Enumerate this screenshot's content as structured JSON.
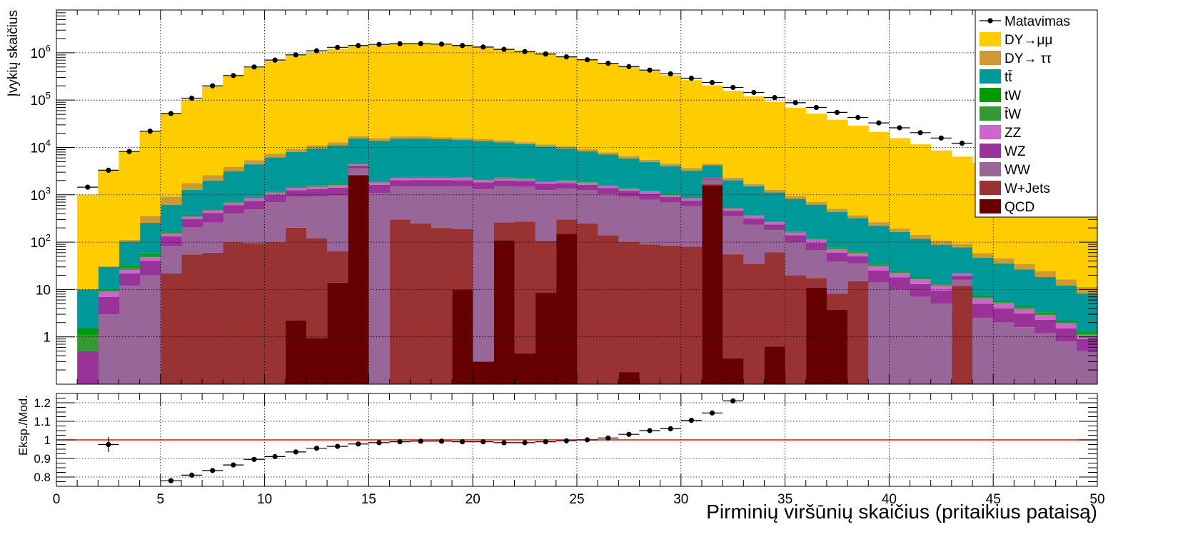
{
  "chart_data": [
    {
      "type": "stacked-histogram",
      "ylabel": "Įvykių skaičius",
      "xlim": [
        0,
        50
      ],
      "ylim": [
        0.1,
        8000000
      ],
      "yscale": "log",
      "grid": true,
      "legend_position": "top-right",
      "ytick_labels": [
        {
          "v": 1,
          "label": "1"
        },
        {
          "v": 10,
          "label": "10"
        },
        {
          "v": 100,
          "label": "10",
          "exp": "2"
        },
        {
          "v": 1000,
          "label": "10",
          "exp": "3"
        },
        {
          "v": 10000,
          "label": "10",
          "exp": "4"
        },
        {
          "v": 100000,
          "label": "10",
          "exp": "5"
        },
        {
          "v": 1000000,
          "label": "10",
          "exp": "6"
        }
      ],
      "bin_start": 1,
      "bin_width": 1,
      "series": [
        {
          "name": "QCD",
          "color": "#660000",
          "values": [
            0,
            0,
            0,
            0,
            0,
            0,
            0,
            0,
            0,
            0,
            2.2,
            0.95,
            14,
            2600,
            0,
            0,
            0,
            0,
            10,
            0.3,
            110,
            0.45,
            8.5,
            150,
            0,
            0,
            0.18,
            0,
            0,
            0,
            1600,
            0.35,
            0,
            0.62,
            0,
            11,
            3.7,
            0,
            0,
            0,
            0,
            0,
            0,
            0,
            0,
            0,
            0,
            0,
            0
          ]
        },
        {
          "name": "W+Jets",
          "color": "#993333",
          "values": [
            0,
            0,
            0,
            0,
            22,
            55,
            60,
            100,
            95,
            100,
            200,
            120,
            50,
            45,
            0,
            300,
            250,
            200,
            180,
            0,
            150,
            270,
            100,
            150,
            250,
            140,
            100,
            90,
            85,
            80,
            65,
            55,
            35,
            60,
            20,
            6.5,
            4.5,
            15,
            0,
            0,
            0,
            0,
            12,
            0,
            0,
            0,
            0,
            0,
            0
          ]
        },
        {
          "name": "WW",
          "color": "#996699",
          "values": [
            0,
            3,
            12,
            20,
            60,
            150,
            200,
            300,
            400,
            600,
            700,
            800,
            900,
            1000,
            1100,
            1200,
            1250,
            1300,
            1300,
            1300,
            1250,
            1200,
            1150,
            1050,
            1000,
            900,
            800,
            700,
            600,
            500,
            400,
            300,
            200,
            120,
            80,
            50,
            30,
            20,
            14,
            10,
            7,
            5,
            4,
            2.5,
            2,
            1.6,
            1.2,
            0.8,
            0.5
          ]
        },
        {
          "name": "WZ",
          "color": "#993399",
          "values": [
            0.5,
            4,
            10,
            20,
            50,
            100,
            150,
            200,
            250,
            300,
            350,
            400,
            450,
            500,
            520,
            540,
            550,
            550,
            540,
            520,
            500,
            480,
            450,
            420,
            380,
            340,
            300,
            260,
            220,
            180,
            140,
            110,
            80,
            55,
            40,
            30,
            22,
            15,
            11,
            8,
            6,
            4.5,
            3.5,
            2.5,
            2,
            1.5,
            1.1,
            0.7,
            0.4
          ]
        },
        {
          "name": "ZZ",
          "color": "#cc66cc",
          "values": [
            0,
            2,
            4,
            8,
            20,
            40,
            60,
            80,
            100,
            120,
            140,
            160,
            180,
            200,
            210,
            220,
            225,
            225,
            220,
            210,
            200,
            190,
            180,
            165,
            150,
            135,
            120,
            105,
            90,
            75,
            60,
            48,
            38,
            28,
            20,
            15,
            11,
            8,
            6,
            4.5,
            3.5,
            2.6,
            2,
            1.5,
            1.1,
            0.8,
            0.6,
            0.4,
            0.2
          ]
        },
        {
          "name": "t̄W",
          "color": "#339933",
          "values": [
            0.6,
            0.5,
            3,
            4,
            8,
            12,
            18,
            25,
            30,
            35,
            40,
            45,
            50,
            55,
            55,
            55,
            55,
            55,
            50,
            50,
            45,
            40,
            35,
            35,
            30,
            25,
            22,
            18,
            15,
            12,
            10,
            8,
            6,
            5,
            4,
            3,
            2.5,
            2,
            1.5,
            1.2,
            0.9,
            0.7,
            0.5,
            0.4,
            0.3,
            0.25,
            0.2,
            0.15,
            0.1
          ]
        },
        {
          "name": "tW",
          "color": "#009900",
          "values": [
            0.4,
            0.5,
            3,
            4,
            8,
            12,
            18,
            25,
            30,
            35,
            40,
            45,
            50,
            55,
            55,
            55,
            55,
            55,
            50,
            50,
            45,
            40,
            35,
            35,
            30,
            25,
            22,
            18,
            15,
            12,
            10,
            8,
            6,
            5,
            4,
            3,
            2.5,
            2,
            1.5,
            1.2,
            0.9,
            0.7,
            0.5,
            0.4,
            0.3,
            0.25,
            0.2,
            0.15,
            0.1
          ]
        },
        {
          "name": "tt̄",
          "color": "#009999",
          "values": [
            8.5,
            20,
            70,
            200,
            450,
            900,
            1500,
            2400,
            3500,
            5000,
            6500,
            8000,
            9500,
            11000,
            12000,
            13000,
            13000,
            12500,
            12000,
            11500,
            10500,
            9500,
            8500,
            7500,
            6500,
            5500,
            4500,
            3700,
            3000,
            2400,
            1900,
            1500,
            1150,
            850,
            650,
            500,
            360,
            260,
            190,
            140,
            100,
            75,
            55,
            40,
            30,
            22,
            15,
            10,
            7
          ]
        },
        {
          "name": "DY→ ττ",
          "color": "#cc9933",
          "values": [
            0,
            1,
            10,
            100,
            300,
            500,
            600,
            800,
            1000,
            1200,
            1400,
            1500,
            1600,
            1700,
            1700,
            1700,
            1700,
            1600,
            1500,
            1400,
            1300,
            1200,
            1100,
            1000,
            900,
            800,
            700,
            600,
            500,
            400,
            300,
            250,
            200,
            150,
            120,
            90,
            70,
            50,
            40,
            30,
            25,
            20,
            15,
            12,
            10,
            8,
            6,
            4,
            3
          ]
        },
        {
          "name": "DY→μμ",
          "color": "#ffcc00",
          "values": [
            1000,
            3200,
            8000,
            21000,
            50000,
            100000,
            190000,
            320000,
            480000,
            660000,
            850000,
            1000000,
            1200000,
            1350000,
            1430000,
            1500000,
            1520000,
            1500000,
            1420000,
            1320000,
            1200000,
            1080000,
            950000,
            830000,
            710000,
            600000,
            500000,
            410000,
            330000,
            260000,
            200000,
            155000,
            118000,
            90000,
            68000,
            51000,
            38000,
            28500,
            21000,
            15500,
            11500,
            8500,
            6300,
            4700,
            3500,
            2600,
            1900,
            1400,
            950
          ]
        }
      ],
      "data": {
        "name": "Matavimas",
        "x": [
          1.5,
          2.5,
          3.5,
          4.5,
          5.5,
          6.5,
          7.5,
          8.5,
          9.5,
          10.5,
          11.5,
          12.5,
          13.5,
          14.5,
          15.5,
          16.5,
          17.5,
          18.5,
          19.5,
          20.5,
          21.5,
          22.5,
          23.5,
          24.5,
          25.5,
          26.5,
          27.5,
          28.5,
          29.5,
          30.5,
          31.5,
          32.5,
          33.5,
          34.5,
          35.5,
          36.5,
          37.5,
          38.5,
          39.5,
          40.5,
          41.5,
          42.5,
          43.5
        ],
        "y": [
          1450,
          3300,
          8200,
          22000,
          52000,
          110000,
          200000,
          330000,
          500000,
          700000,
          900000,
          1100000,
          1300000,
          1420000,
          1500000,
          1550000,
          1560000,
          1520000,
          1420000,
          1320000,
          1180000,
          1060000,
          940000,
          820000,
          710000,
          600000,
          510000,
          430000,
          360000,
          290000,
          235000,
          185000,
          145000,
          113000,
          88000,
          70000,
          55000,
          43000,
          33000,
          26000,
          20500,
          15800,
          12300
        ]
      }
    },
    {
      "type": "scatter",
      "xlabel": "Pirminių viršūnių skaičius (pritaikius pataisą)",
      "ylabel": "Eksp./Mod.",
      "xlim": [
        0,
        50
      ],
      "ylim": [
        0.75,
        1.25
      ],
      "grid": true,
      "xticks": [
        0,
        5,
        10,
        15,
        20,
        25,
        30,
        35,
        40,
        45,
        50
      ],
      "yticks": [
        0.8,
        0.9,
        1,
        1.1,
        1.2
      ],
      "ytick_labels": [
        "0.8",
        "0.9",
        "1",
        "1.1",
        "1.2"
      ],
      "reference_line": {
        "y": 1,
        "color": "#ff0000"
      },
      "x": [
        2.5,
        5.5,
        6.5,
        7.5,
        8.5,
        9.5,
        10.5,
        11.5,
        12.5,
        13.5,
        14.5,
        15.5,
        16.5,
        17.5,
        18.5,
        19.5,
        20.5,
        21.5,
        22.5,
        23.5,
        24.5,
        25.5,
        26.5,
        27.5,
        28.5,
        29.5,
        30.5,
        31.5,
        32.5
      ],
      "y": [
        0.975,
        0.78,
        0.81,
        0.835,
        0.865,
        0.895,
        0.91,
        0.935,
        0.955,
        0.965,
        0.978,
        0.985,
        0.99,
        0.993,
        0.993,
        0.99,
        0.99,
        0.985,
        0.985,
        0.99,
        0.995,
        1.0,
        1.01,
        1.03,
        1.05,
        1.06,
        1.105,
        1.145,
        1.21
      ],
      "err": [
        0.04,
        0.005,
        0.005,
        0.005,
        0.004,
        0.004,
        0.004,
        0.003,
        0.003,
        0.003,
        0.003,
        0.003,
        0.003,
        0.003,
        0.003,
        0.003,
        0.003,
        0.003,
        0.003,
        0.003,
        0.003,
        0.003,
        0.004,
        0.004,
        0.004,
        0.005,
        0.005,
        0.006,
        0.007
      ]
    }
  ]
}
